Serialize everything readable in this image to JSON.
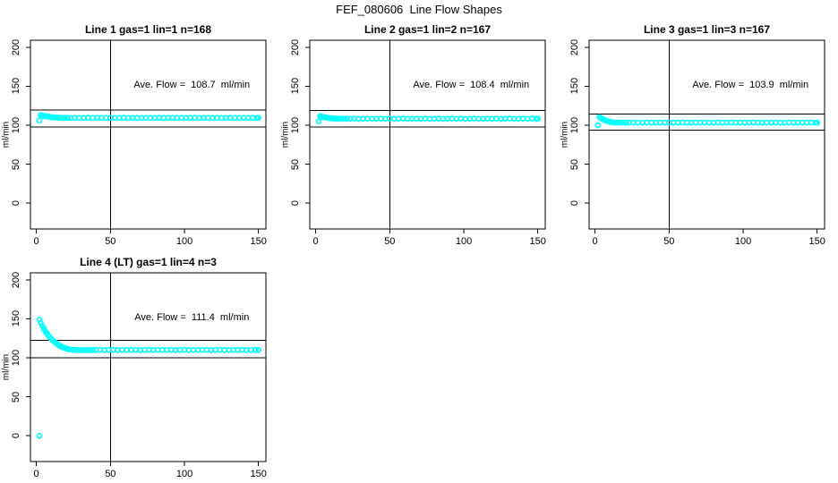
{
  "page": {
    "title": "FEF_080606  Line Flow Shapes"
  },
  "chart_data": [
    {
      "type": "scatter",
      "title": "Line 1 gas=1 lin=1 n=168",
      "annotation": "Ave. Flow =  108.7  ml/min",
      "avg_flow_ml_min": 108.7,
      "ylabel": "ml/min",
      "x_ticks": [
        0,
        50,
        100,
        150
      ],
      "y_ticks": [
        0,
        50,
        100,
        150,
        200
      ],
      "xlim": [
        -4,
        155
      ],
      "ylim": [
        -33,
        209
      ],
      "vline_x": 50,
      "ref_lines_y": [
        119.6,
        97.8
      ],
      "point_color": "#00FFFF",
      "point_style": "open-circle",
      "points": [
        [
          2,
          106
        ],
        [
          3,
          113
        ],
        [
          4,
          112.6
        ],
        [
          5,
          112.1
        ],
        [
          6,
          111.7
        ],
        [
          7,
          111.3
        ],
        [
          8,
          111
        ],
        [
          9,
          110.7
        ],
        [
          10,
          110.5
        ],
        [
          11,
          110.3
        ],
        [
          12,
          110.1
        ],
        [
          13,
          110
        ],
        [
          14,
          109.9
        ],
        [
          15,
          109.8
        ],
        [
          17,
          109.7
        ],
        [
          19,
          109.6
        ],
        [
          21,
          109.6
        ],
        [
          23,
          109.5
        ],
        [
          26,
          109.6
        ],
        [
          29,
          109.4
        ],
        [
          32,
          109.5
        ],
        [
          35,
          109.7
        ],
        [
          38,
          109.5
        ],
        [
          41,
          109.4
        ],
        [
          44,
          109.6
        ],
        [
          47,
          109.5
        ],
        [
          50,
          109.6
        ],
        [
          53,
          109.4
        ],
        [
          56,
          109.5
        ],
        [
          59,
          109.7
        ],
        [
          62,
          109.5
        ],
        [
          65,
          109.4
        ],
        [
          68,
          109.6
        ],
        [
          71,
          109.5
        ],
        [
          74,
          109.6
        ],
        [
          77,
          109.4
        ],
        [
          80,
          109.5
        ],
        [
          83,
          109.7
        ],
        [
          86,
          109.5
        ],
        [
          89,
          109.4
        ],
        [
          92,
          109.6
        ],
        [
          95,
          109.5
        ],
        [
          98,
          109.6
        ],
        [
          101,
          109.4
        ],
        [
          104,
          109.5
        ],
        [
          107,
          109.7
        ],
        [
          110,
          109.5
        ],
        [
          113,
          109.4
        ],
        [
          116,
          109.6
        ],
        [
          119,
          109.5
        ],
        [
          122,
          109.6
        ],
        [
          125,
          109.4
        ],
        [
          128,
          109.5
        ],
        [
          131,
          109.7
        ],
        [
          134,
          109.5
        ],
        [
          137,
          109.4
        ],
        [
          140,
          109.6
        ],
        [
          143,
          109.5
        ],
        [
          146,
          109.6
        ],
        [
          149,
          109.4
        ],
        [
          150,
          109.5
        ]
      ]
    },
    {
      "type": "scatter",
      "title": "Line 2 gas=1 lin=2 n=167",
      "annotation": "Ave. Flow =  108.4  ml/min",
      "avg_flow_ml_min": 108.4,
      "ylabel": "ml/min",
      "x_ticks": [
        0,
        50,
        100,
        150
      ],
      "y_ticks": [
        0,
        50,
        100,
        150,
        200
      ],
      "xlim": [
        -4,
        155
      ],
      "ylim": [
        -33,
        209
      ],
      "vline_x": 50,
      "ref_lines_y": [
        119.2,
        97.6
      ],
      "point_color": "#00FFFF",
      "point_style": "open-circle",
      "points": [
        [
          2,
          105
        ],
        [
          3,
          111.5
        ],
        [
          4,
          111
        ],
        [
          5,
          110.6
        ],
        [
          6,
          110.2
        ],
        [
          7,
          109.9
        ],
        [
          8,
          109.6
        ],
        [
          9,
          109.3
        ],
        [
          10,
          109.1
        ],
        [
          11,
          108.9
        ],
        [
          12,
          108.8
        ],
        [
          13,
          108.7
        ],
        [
          14,
          108.6
        ],
        [
          15,
          108.5
        ],
        [
          17,
          108.4
        ],
        [
          19,
          108.4
        ],
        [
          21,
          108.3
        ],
        [
          23,
          108.3
        ],
        [
          26,
          108.6
        ],
        [
          29,
          108.1
        ],
        [
          32,
          108.4
        ],
        [
          35,
          108.7
        ],
        [
          38,
          108.2
        ],
        [
          41,
          108.4
        ],
        [
          44,
          108.5
        ],
        [
          47,
          108.3
        ],
        [
          50,
          108.6
        ],
        [
          53,
          108.1
        ],
        [
          56,
          108.4
        ],
        [
          59,
          108.7
        ],
        [
          62,
          108.2
        ],
        [
          65,
          108.4
        ],
        [
          68,
          108.5
        ],
        [
          71,
          108.3
        ],
        [
          74,
          108.6
        ],
        [
          77,
          108.1
        ],
        [
          80,
          108.4
        ],
        [
          83,
          108.7
        ],
        [
          86,
          108.2
        ],
        [
          89,
          108.4
        ],
        [
          92,
          108.5
        ],
        [
          95,
          108.3
        ],
        [
          98,
          108.6
        ],
        [
          101,
          108.1
        ],
        [
          104,
          108.4
        ],
        [
          107,
          108.7
        ],
        [
          110,
          108.2
        ],
        [
          113,
          108.4
        ],
        [
          116,
          108.5
        ],
        [
          119,
          108.3
        ],
        [
          122,
          108.6
        ],
        [
          125,
          108.1
        ],
        [
          128,
          108.4
        ],
        [
          131,
          108.7
        ],
        [
          134,
          108.2
        ],
        [
          137,
          108.4
        ],
        [
          140,
          108.5
        ],
        [
          143,
          108.3
        ],
        [
          146,
          108.6
        ],
        [
          149,
          108.1
        ],
        [
          150,
          108.4
        ]
      ]
    },
    {
      "type": "scatter",
      "title": "Line 3 gas=1 lin=3 n=167",
      "annotation": "Ave. Flow =  103.9  ml/min",
      "avg_flow_ml_min": 103.9,
      "ylabel": "ml/min",
      "x_ticks": [
        0,
        50,
        100,
        150
      ],
      "y_ticks": [
        0,
        50,
        100,
        150,
        200
      ],
      "xlim": [
        -4,
        155
      ],
      "ylim": [
        -33,
        209
      ],
      "vline_x": 50,
      "ref_lines_y": [
        114.3,
        93.5
      ],
      "point_color": "#00FFFF",
      "point_style": "open-circle",
      "points": [
        [
          2,
          100
        ],
        [
          3,
          110.4
        ],
        [
          4,
          109.2
        ],
        [
          5,
          108.1
        ],
        [
          6,
          107.1
        ],
        [
          7,
          106.2
        ],
        [
          8,
          105.5
        ],
        [
          9,
          104.9
        ],
        [
          10,
          104.4
        ],
        [
          11,
          104.1
        ],
        [
          12,
          103.8
        ],
        [
          13,
          103.6
        ],
        [
          14,
          103.5
        ],
        [
          15,
          103.5
        ],
        [
          17,
          103.4
        ],
        [
          19,
          103.4
        ],
        [
          21,
          103.4
        ],
        [
          23,
          103.4
        ],
        [
          26,
          103.5
        ],
        [
          29,
          103.2
        ],
        [
          32,
          103.4
        ],
        [
          35,
          103.6
        ],
        [
          38,
          103.3
        ],
        [
          41,
          103.4
        ],
        [
          44,
          103.5
        ],
        [
          47,
          103.4
        ],
        [
          50,
          103.5
        ],
        [
          53,
          103.2
        ],
        [
          56,
          103.4
        ],
        [
          59,
          103.6
        ],
        [
          62,
          103.3
        ],
        [
          65,
          103.4
        ],
        [
          68,
          103.5
        ],
        [
          71,
          103.4
        ],
        [
          74,
          103.5
        ],
        [
          77,
          103.2
        ],
        [
          80,
          103.4
        ],
        [
          83,
          103.6
        ],
        [
          86,
          103.3
        ],
        [
          89,
          103.4
        ],
        [
          92,
          103.5
        ],
        [
          95,
          103.4
        ],
        [
          98,
          103.5
        ],
        [
          101,
          103.2
        ],
        [
          104,
          103.4
        ],
        [
          107,
          103.6
        ],
        [
          110,
          103.3
        ],
        [
          113,
          103.4
        ],
        [
          116,
          103.5
        ],
        [
          119,
          103.4
        ],
        [
          122,
          103.5
        ],
        [
          125,
          103.2
        ],
        [
          128,
          103.4
        ],
        [
          131,
          103.6
        ],
        [
          134,
          103.3
        ],
        [
          137,
          103.4
        ],
        [
          140,
          103.5
        ],
        [
          143,
          103.4
        ],
        [
          146,
          103.5
        ],
        [
          149,
          103.2
        ],
        [
          150,
          103.4
        ]
      ]
    },
    {
      "type": "scatter",
      "title": "Line 4 (LT) gas=1 lin=4 n=3",
      "annotation": "Ave. Flow =  111.4  ml/min",
      "avg_flow_ml_min": 111.4,
      "ylabel": "ml/min",
      "x_ticks": [
        0,
        50,
        100,
        150
      ],
      "y_ticks": [
        0,
        50,
        100,
        150,
        200
      ],
      "xlim": [
        -4,
        155
      ],
      "ylim": [
        -33,
        209
      ],
      "vline_x": 50,
      "ref_lines_y": [
        122.5,
        100.3
      ],
      "point_color": "#00FFFF",
      "point_style": "open-circle",
      "points": [
        [
          2,
          0
        ],
        [
          2,
          149
        ],
        [
          3,
          144.8
        ],
        [
          4,
          141
        ],
        [
          5,
          137.5
        ],
        [
          6,
          134.4
        ],
        [
          7,
          131.5
        ],
        [
          8,
          128.9
        ],
        [
          9,
          126.6
        ],
        [
          10,
          124.4
        ],
        [
          11,
          122.5
        ],
        [
          12,
          120.8
        ],
        [
          13,
          119.2
        ],
        [
          14,
          117.8
        ],
        [
          15,
          116.5
        ],
        [
          16,
          115.4
        ],
        [
          17,
          114.4
        ],
        [
          18,
          113.5
        ],
        [
          19,
          112.7
        ],
        [
          20,
          112
        ],
        [
          21,
          111.4
        ],
        [
          22,
          110.9
        ],
        [
          24,
          110.5
        ],
        [
          26,
          110.2
        ],
        [
          28,
          110
        ],
        [
          30,
          109.9
        ],
        [
          32,
          109.8
        ],
        [
          34,
          109.8
        ],
        [
          36,
          109.9
        ],
        [
          38,
          110
        ],
        [
          40,
          110
        ],
        [
          43,
          110.2
        ],
        [
          46,
          109.8
        ],
        [
          49,
          110
        ],
        [
          52,
          110.3
        ],
        [
          55,
          109.9
        ],
        [
          58,
          110
        ],
        [
          61,
          110.1
        ],
        [
          64,
          110
        ],
        [
          67,
          110.2
        ],
        [
          70,
          109.8
        ],
        [
          73,
          110
        ],
        [
          76,
          110.3
        ],
        [
          79,
          109.9
        ],
        [
          82,
          110
        ],
        [
          85,
          110.1
        ],
        [
          88,
          110
        ],
        [
          91,
          110.2
        ],
        [
          94,
          109.8
        ],
        [
          97,
          110
        ],
        [
          100,
          110.3
        ],
        [
          103,
          109.9
        ],
        [
          106,
          110
        ],
        [
          109,
          110.1
        ],
        [
          112,
          110
        ],
        [
          115,
          110.2
        ],
        [
          118,
          109.8
        ],
        [
          121,
          110
        ],
        [
          124,
          110.3
        ],
        [
          127,
          109.9
        ],
        [
          130,
          110
        ],
        [
          133,
          110.1
        ],
        [
          136,
          110
        ],
        [
          139,
          110.2
        ],
        [
          142,
          109.8
        ],
        [
          145,
          110
        ],
        [
          148,
          110.3
        ],
        [
          150,
          110
        ]
      ]
    }
  ]
}
